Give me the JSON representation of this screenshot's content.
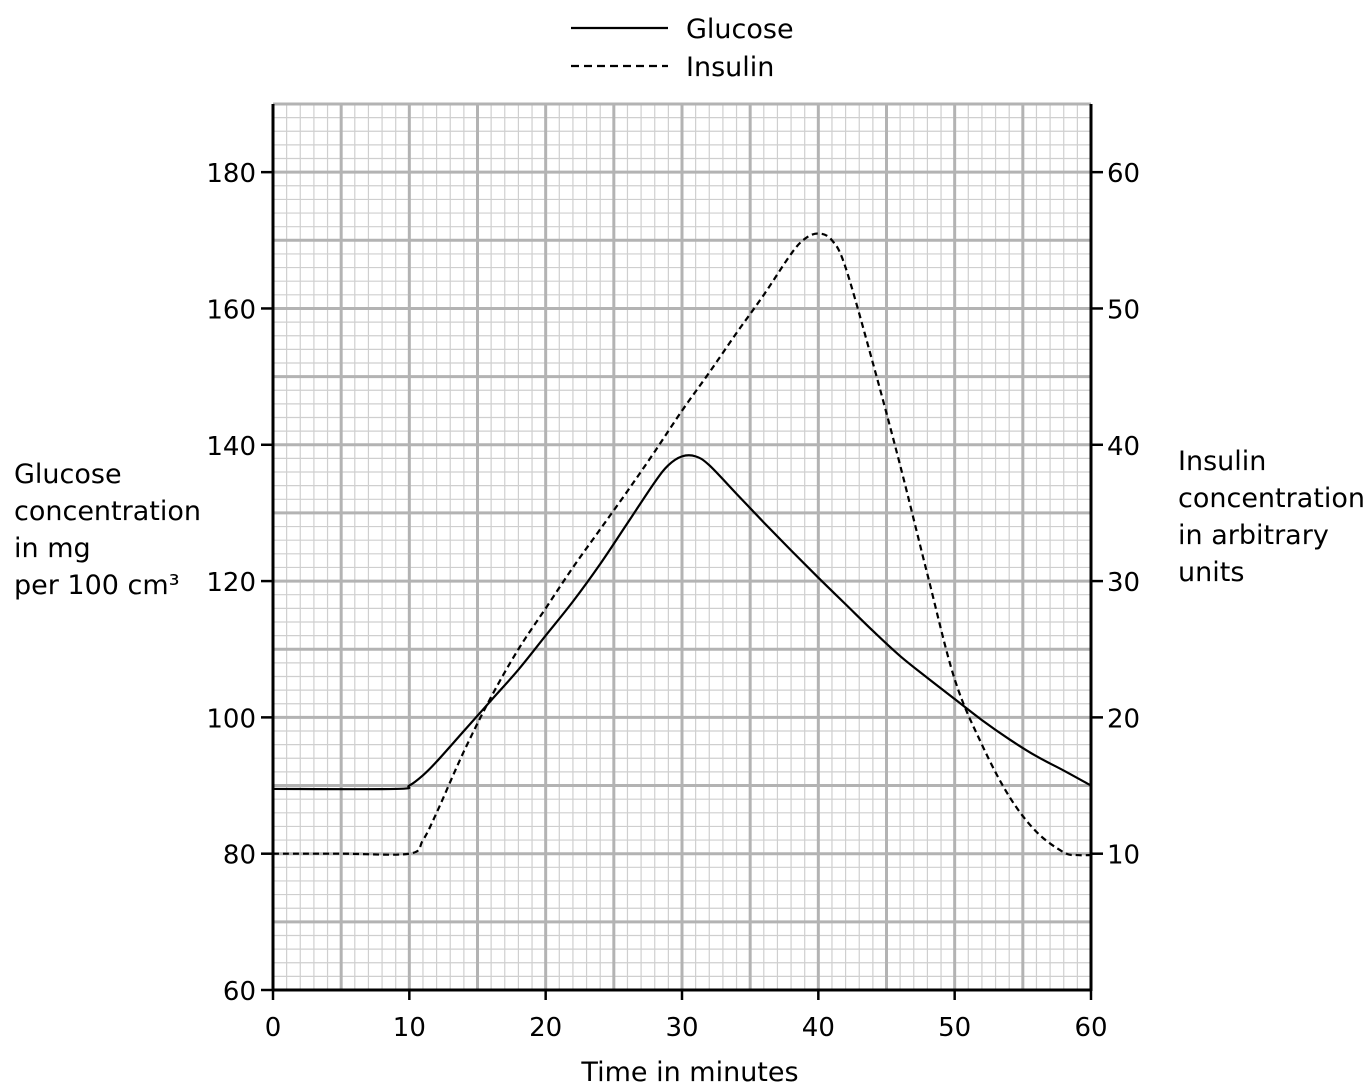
{
  "chart_data": {
    "type": "line",
    "xlabel": "Time in minutes",
    "ylabel": [
      "Glucose",
      "concentration",
      "in mg",
      "per 100 cm³"
    ],
    "y2label": [
      "Insulin",
      "concentration",
      "in arbitrary",
      "units"
    ],
    "xlim": [
      0,
      60
    ],
    "ylim": [
      60,
      190
    ],
    "y2lim": [
      0,
      65
    ],
    "xticks": [
      "0",
      "10",
      "20",
      "30",
      "40",
      "50",
      "60"
    ],
    "yticks": [
      "60",
      "80",
      "100",
      "120",
      "140",
      "160",
      "180"
    ],
    "y2ticks": [
      "10",
      "20",
      "30",
      "40",
      "50",
      "60"
    ],
    "grid": true,
    "legend_position": "top-center",
    "series": [
      {
        "name": "Glucose",
        "axis": "left",
        "style": "solid",
        "x": [
          0,
          9,
          10,
          11,
          12,
          14,
          16,
          18,
          20,
          22,
          24,
          26,
          28,
          29,
          30,
          31,
          32,
          34,
          36,
          38,
          40,
          42,
          44,
          46,
          48,
          50,
          52,
          54,
          56,
          58,
          60
        ],
        "y": [
          89.5,
          89.5,
          90,
          91.5,
          93.5,
          98,
          102.5,
          107,
          112,
          117,
          122.5,
          128.5,
          134.5,
          137,
          138.3,
          138.3,
          137,
          132.8,
          128.6,
          124.5,
          120.5,
          116.6,
          112.7,
          109,
          105.8,
          102.7,
          99.6,
          96.8,
          94.3,
          92.2,
          90
        ]
      },
      {
        "name": "Insulin",
        "axis": "right",
        "style": "dashed",
        "x": [
          0,
          5,
          10,
          11,
          12,
          14,
          16,
          18,
          20,
          22,
          24,
          26,
          28,
          30,
          32,
          34,
          36,
          38,
          39,
          40,
          41,
          42,
          44,
          46,
          48,
          50,
          52,
          54,
          56,
          58,
          59,
          60
        ],
        "y": [
          10,
          10,
          10,
          11,
          13,
          17.5,
          21.5,
          25,
          28,
          31,
          33.8,
          36.6,
          39.5,
          42.5,
          45.3,
          48.2,
          51,
          54,
          55.1,
          55.5,
          55,
          53,
          46,
          38.5,
          30.5,
          22.8,
          18,
          14.2,
          11.6,
          10.1,
          9.9,
          9.9
        ]
      }
    ]
  }
}
